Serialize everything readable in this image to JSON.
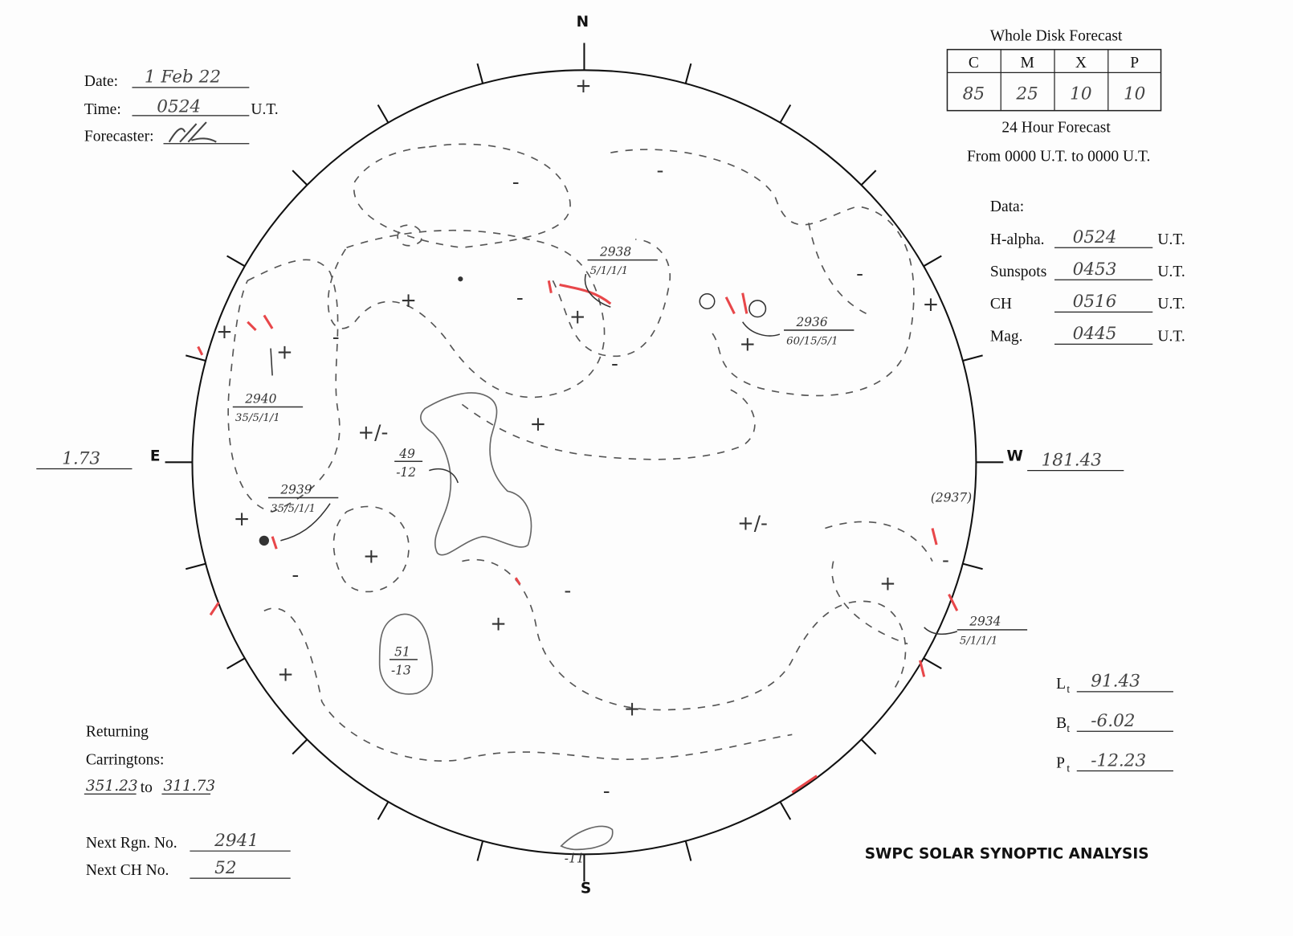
{
  "header": {
    "date_label": "Date:",
    "date": "1 Feb 22",
    "time_label": "Time:",
    "time": "0524",
    "time_unit": "U.T.",
    "forecaster_label": "Forecaster:"
  },
  "forecast": {
    "title": "Whole Disk Forecast",
    "columns": [
      "C",
      "M",
      "X",
      "P"
    ],
    "values": [
      "85",
      "25",
      "10",
      "10"
    ],
    "period": "24 Hour Forecast",
    "range": "From 0000 U.T. to 0000 U.T."
  },
  "data": {
    "title": "Data:",
    "rows": [
      {
        "label": "H-alpha.",
        "time": "0524",
        "unit": "U.T."
      },
      {
        "label": "Sunspots",
        "time": "0453",
        "unit": "U.T."
      },
      {
        "label": "CH",
        "time": "0516",
        "unit": "U.T."
      },
      {
        "label": "Mag.",
        "time": "0445",
        "unit": "U.T."
      }
    ]
  },
  "disk": {
    "north": "N",
    "south": "S",
    "east": "E",
    "west": "W",
    "east_value": "1.73",
    "west_value": "181.43",
    "regions": [
      {
        "number": "2938",
        "data": "5/1/1/1"
      },
      {
        "number": "2936",
        "data": "60/15/5/1"
      },
      {
        "number": "2940",
        "data": "35/5/1/1"
      },
      {
        "number": "2939",
        "data": "35/5/1/1"
      },
      {
        "number": "2934",
        "data": "5/1/1/1"
      }
    ],
    "other_region": "(2937)",
    "coronal_holes": [
      {
        "number": "49",
        "value": "-12"
      },
      {
        "number": "51",
        "value": "-13"
      }
    ],
    "south_hole": "-11",
    "polarity": [
      "+",
      "-",
      "-",
      "+",
      "-",
      "+",
      "-",
      "+",
      "+",
      "-",
      "+",
      "+/-",
      "+",
      "+",
      "-",
      "+/-",
      "+",
      "-",
      "+",
      "-",
      "+",
      "+",
      "+",
      "+",
      "-",
      "-"
    ]
  },
  "parameters": [
    {
      "label": "L",
      "sub": "t",
      "value": "91.43"
    },
    {
      "label": "B",
      "sub": "t",
      "value": "-6.02"
    },
    {
      "label": "P",
      "sub": "t",
      "value": "-12.23"
    }
  ],
  "carringtons": {
    "label1": "Returning",
    "label2": "Carringtons:",
    "from": "351.23",
    "to_word": "to",
    "to": "311.73"
  },
  "next": [
    {
      "label": "Next Rgn. No.",
      "value": "2941"
    },
    {
      "label": "Next CH No.",
      "value": "52"
    }
  ],
  "footer": "SWPC SOLAR SYNOPTIC ANALYSIS"
}
